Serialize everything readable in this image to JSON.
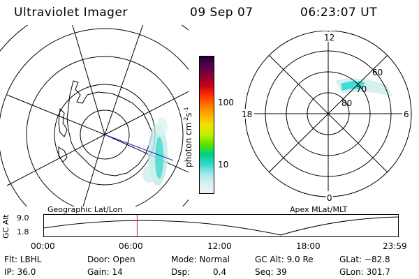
{
  "header": {
    "instrument": "Ultraviolet Imager",
    "date": "09 Sep 07",
    "time": "06:23:07 UT"
  },
  "colorbar": {
    "unit_label": "photon cm",
    "unit_sup1": "-2",
    "unit_mid": "s",
    "unit_sup2": "-1",
    "ticks": [
      "100",
      "10"
    ],
    "colors_top_to_bottom": [
      "#1a0030",
      "#5a0050",
      "#8a0030",
      "#c80020",
      "#ff3000",
      "#ff7800",
      "#ffb000",
      "#f0e000",
      "#c0f000",
      "#60e000",
      "#00d080",
      "#30d8d0",
      "#a0e8e8",
      "#d8f0f0",
      "#f0f4f4"
    ]
  },
  "left_map": {
    "caption": "Geographic Lat/Lon"
  },
  "right_map": {
    "caption": "Apex MLat/MLT",
    "mlt_labels": {
      "top": "12",
      "left": "18",
      "right": "6",
      "bottom": "0"
    },
    "lat_labels": [
      "60",
      "70",
      "80"
    ]
  },
  "altitude_plot": {
    "ylabel": "GC Alt",
    "yticks": [
      "9.0",
      "1.8"
    ],
    "xticks": [
      "00:00",
      "06:00",
      "12:00",
      "18:00",
      "23:59"
    ],
    "marker_time_fraction": 0.264
  },
  "status": {
    "filter": "Flt: LBHL",
    "door": "Door: Open",
    "mode": "Mode: Normal",
    "gc_alt": "GC Alt: 9.0 Re",
    "glat": "GLat: −82.8",
    "ip": "IP: 36.0",
    "gain": "Gain: 14",
    "dsp_label": "Dsp:",
    "dsp_value": "0.4",
    "seq": "Seq: 39",
    "glon": "GLon: 301.7"
  }
}
